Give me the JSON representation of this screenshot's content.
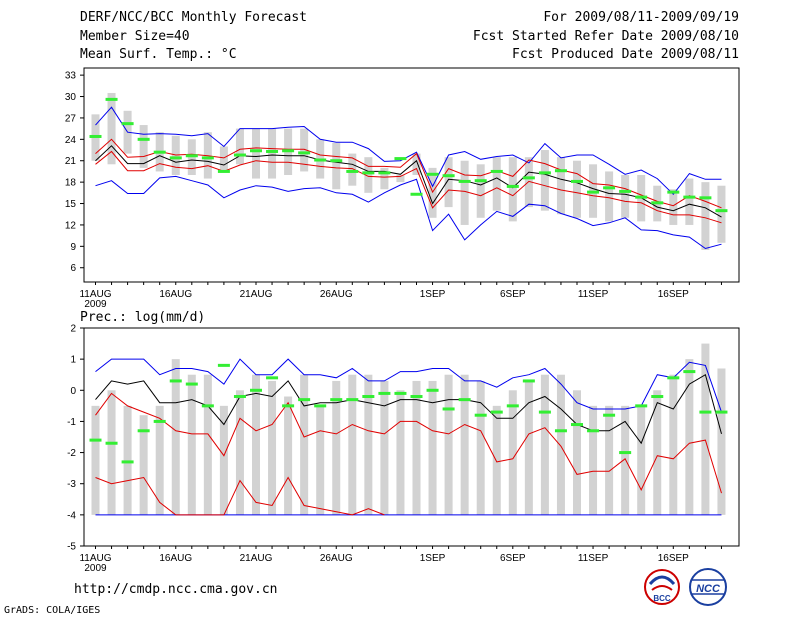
{
  "header": {
    "title": "DERF/NCC/BCC Monthly Forecast",
    "member_size": "Member Size=40",
    "variable": "Mean Surf. Temp.: °C",
    "forecast_period": "For 2009/08/11-2009/09/19",
    "started_refer": "Fcst Started Refer Date 2009/08/10",
    "produced": "Fcst Produced Date 2009/08/11"
  },
  "footer": {
    "url": "http://cmdp.ncc.cma.gov.cn",
    "credit": "GrADS: COLA/IGES",
    "logo_bcc": "BCC",
    "logo_ncc": "NCC"
  },
  "colors": {
    "box": "#d2d2d2",
    "median": "#000000",
    "quartile": "#e00000",
    "extreme": "#0000ee",
    "mean": "#33ee33"
  },
  "chart_data": [
    {
      "type": "box",
      "title": "Mean Surf. Temp.: °C",
      "xlabel": "",
      "ylabel": "",
      "x_ticks": [
        "11AUG\n2009",
        "16AUG",
        "21AUG",
        "26AUG",
        "1SEP",
        "6SEP",
        "11SEP",
        "16SEP"
      ],
      "x_tick_days": [
        0,
        5,
        10,
        15,
        21,
        26,
        31,
        36
      ],
      "ylim": [
        4,
        34
      ],
      "y_ticks": [
        6,
        9,
        12,
        15,
        18,
        21,
        24,
        27,
        30,
        33
      ],
      "x": [
        0,
        1,
        2,
        3,
        4,
        5,
        6,
        7,
        8,
        9,
        10,
        11,
        12,
        13,
        14,
        15,
        16,
        17,
        18,
        19,
        20,
        21,
        22,
        23,
        24,
        25,
        26,
        27,
        28,
        29,
        30,
        31,
        32,
        33,
        34,
        35,
        36,
        37,
        38,
        39
      ],
      "series": [
        {
          "name": "max",
          "values": [
            26.0,
            28.5,
            25.0,
            24.7,
            24.8,
            24.7,
            24.5,
            24.8,
            23.0,
            25.5,
            25.5,
            25.5,
            25.7,
            25.8,
            24.0,
            23.6,
            23.6,
            22.7,
            20.9,
            21.0,
            22.2,
            17.4,
            21.8,
            22.3,
            21.2,
            21.6,
            21.8,
            20.7,
            23.4,
            21.4,
            21.8,
            21.8,
            20.5,
            19.1,
            19.7,
            18.5,
            16.3,
            19.2,
            18.4,
            18.4
          ]
        },
        {
          "name": "q3",
          "values": [
            22.0,
            24.0,
            21.5,
            21.6,
            22.3,
            21.8,
            21.9,
            21.7,
            21.4,
            22.6,
            22.8,
            22.7,
            22.6,
            22.6,
            21.8,
            21.6,
            21.4,
            20.2,
            20.2,
            20.1,
            22.0,
            16.6,
            19.9,
            19.0,
            18.9,
            19.6,
            18.8,
            21.1,
            20.6,
            19.7,
            19.2,
            17.8,
            17.6,
            17.1,
            16.2,
            15.3,
            14.7,
            16.1,
            15.3,
            14.4
          ]
        },
        {
          "name": "median",
          "values": [
            21.0,
            23.1,
            20.6,
            20.6,
            21.7,
            20.8,
            21.1,
            20.9,
            20.4,
            21.7,
            21.6,
            21.8,
            21.7,
            21.7,
            21.1,
            20.8,
            20.5,
            19.5,
            19.5,
            19.1,
            21.0,
            15.0,
            18.4,
            18.2,
            17.6,
            18.6,
            17.2,
            19.4,
            19.1,
            18.4,
            17.9,
            17.1,
            16.4,
            16.3,
            15.8,
            14.5,
            14.0,
            14.9,
            14.4,
            13.1
          ]
        },
        {
          "name": "q1",
          "values": [
            20.5,
            22.3,
            19.6,
            19.6,
            20.6,
            20.1,
            19.9,
            20.3,
            19.5,
            20.4,
            21.0,
            20.8,
            20.8,
            20.5,
            20.2,
            20.0,
            19.9,
            18.8,
            18.7,
            18.8,
            19.9,
            14.4,
            16.9,
            16.7,
            16.1,
            17.2,
            16.1,
            18.1,
            17.5,
            16.9,
            16.5,
            16.1,
            15.8,
            15.3,
            15.1,
            14.0,
            13.4,
            13.4,
            13.0,
            12.3
          ]
        },
        {
          "name": "min",
          "values": [
            17.5,
            18.2,
            16.4,
            16.4,
            18.6,
            18.8,
            18.2,
            17.6,
            15.8,
            16.9,
            17.5,
            17.3,
            16.7,
            17.1,
            17.2,
            16.5,
            16.3,
            15.2,
            16.5,
            17.6,
            18.4,
            11.2,
            13.5,
            9.9,
            12.0,
            13.9,
            13.2,
            14.9,
            14.7,
            13.6,
            12.9,
            11.9,
            12.3,
            13.0,
            11.3,
            11.2,
            10.6,
            10.3,
            8.7,
            9.3
          ]
        },
        {
          "name": "box_top",
          "values": [
            27.5,
            30.5,
            28.0,
            26.0,
            25.0,
            24.5,
            24.0,
            25.0,
            23.0,
            25.5,
            25.5,
            25.5,
            25.5,
            25.5,
            24.0,
            23.5,
            22.0,
            21.5,
            20.0,
            19.0,
            22.0,
            20.0,
            21.5,
            21.0,
            20.5,
            21.5,
            21.5,
            21.5,
            22.5,
            21.5,
            21.0,
            20.5,
            19.5,
            19.0,
            19.0,
            17.5,
            17.0,
            18.5,
            18.0,
            17.5
          ]
        },
        {
          "name": "box_bottom",
          "values": [
            21.0,
            20.5,
            22.0,
            20.0,
            19.5,
            19.0,
            19.0,
            18.5,
            19.5,
            20.5,
            18.5,
            18.5,
            19.0,
            19.5,
            18.5,
            17.0,
            17.5,
            16.5,
            17.0,
            18.0,
            19.0,
            13.0,
            14.5,
            12.0,
            13.0,
            14.0,
            12.5,
            14.5,
            14.0,
            13.5,
            13.0,
            13.0,
            12.5,
            13.0,
            12.5,
            12.5,
            12.0,
            12.0,
            8.5,
            9.5
          ]
        },
        {
          "name": "mean",
          "values": [
            24.4,
            29.6,
            26.2,
            24.0,
            22.2,
            21.4,
            21.7,
            21.4,
            19.5,
            21.8,
            22.4,
            22.3,
            22.4,
            22.1,
            21.1,
            21.0,
            19.5,
            19.3,
            19.3,
            21.3,
            16.3,
            19.1,
            18.9,
            18.1,
            18.2,
            19.5,
            17.4,
            18.6,
            19.3,
            19.6,
            18.1,
            16.6,
            17.2,
            16.7,
            15.9,
            15.1,
            16.6,
            15.9,
            15.8,
            14.0
          ]
        }
      ]
    },
    {
      "type": "box",
      "title": "Prec.: log(mm/d)",
      "xlabel": "",
      "ylabel": "",
      "x_ticks": [
        "11AUG\n2009",
        "16AUG",
        "21AUG",
        "26AUG",
        "1SEP",
        "6SEP",
        "11SEP",
        "16SEP"
      ],
      "x_tick_days": [
        0,
        5,
        10,
        15,
        21,
        26,
        31,
        36
      ],
      "ylim": [
        -5,
        2
      ],
      "y_ticks": [
        -5,
        -4,
        -3,
        -2,
        -1,
        0,
        1,
        2
      ],
      "x": [
        0,
        1,
        2,
        3,
        4,
        5,
        6,
        7,
        8,
        9,
        10,
        11,
        12,
        13,
        14,
        15,
        16,
        17,
        18,
        19,
        20,
        21,
        22,
        23,
        24,
        25,
        26,
        27,
        28,
        29,
        30,
        31,
        32,
        33,
        34,
        35,
        36,
        37,
        38,
        39
      ],
      "series": [
        {
          "name": "max",
          "values": [
            0.6,
            1.0,
            1.0,
            1.0,
            0.5,
            0.7,
            0.7,
            0.6,
            0.2,
            1.0,
            0.5,
            0.5,
            1.0,
            0.5,
            0.5,
            0.4,
            0.7,
            0.3,
            0.3,
            0.6,
            0.6,
            0.7,
            0.7,
            0.3,
            0.3,
            0.1,
            0.4,
            0.5,
            0.7,
            0.2,
            -0.4,
            -0.6,
            -0.6,
            -0.6,
            -0.5,
            0.5,
            0.4,
            0.9,
            0.8,
            -0.7
          ]
        },
        {
          "name": "median",
          "values": [
            -0.3,
            0.3,
            0.2,
            0.3,
            -0.4,
            -0.4,
            -0.3,
            -0.5,
            -1.1,
            -0.2,
            -0.1,
            -0.2,
            0.3,
            -0.5,
            -0.4,
            -0.4,
            -0.3,
            -0.4,
            -0.5,
            -0.3,
            -0.3,
            -0.4,
            -0.3,
            -0.3,
            -0.4,
            -0.9,
            -0.9,
            -0.4,
            -0.2,
            -0.6,
            -1.1,
            -1.3,
            -1.3,
            -1.0,
            -1.7,
            -0.4,
            -0.6,
            0.2,
            0.5,
            -1.4
          ]
        },
        {
          "name": "q1",
          "values": [
            -0.8,
            -0.1,
            -0.5,
            -0.7,
            -0.9,
            -1.3,
            -1.4,
            -1.4,
            -2.1,
            -0.9,
            -1.3,
            -1.1,
            -0.4,
            -1.5,
            -1.3,
            -1.4,
            -1.1,
            -1.3,
            -1.4,
            -1.0,
            -1.0,
            -1.3,
            -1.4,
            -1.1,
            -1.3,
            -2.3,
            -2.2,
            -1.4,
            -1.2,
            -1.8,
            -2.7,
            -2.6,
            -2.6,
            -2.2,
            -3.2,
            -2.1,
            -2.2,
            -1.7,
            -1.6,
            -3.3
          ]
        },
        {
          "name": "min_partial",
          "values": [
            -2.8,
            -3.0,
            -2.9,
            -2.8,
            -3.6,
            -4.0,
            -4.0,
            -4.0,
            -4.0,
            -2.9,
            -3.6,
            -3.7,
            -2.8,
            -3.7,
            -3.8,
            -3.9,
            -4.0,
            -3.8,
            -4.0
          ]
        },
        {
          "name": "box_top",
          "values": [
            -0.5,
            0.0,
            -0.5,
            -0.8,
            -0.5,
            1.0,
            0.5,
            0.5,
            -0.5,
            0.0,
            0.5,
            0.3,
            -0.2,
            0.5,
            -0.5,
            0.3,
            0.5,
            0.5,
            0.3,
            0.0,
            0.3,
            0.3,
            0.5,
            0.5,
            0.3,
            -0.5,
            0.0,
            0.3,
            0.5,
            0.5,
            0.0,
            -0.5,
            -0.5,
            -0.5,
            -0.5,
            0.0,
            0.5,
            1.0,
            1.5,
            0.7
          ]
        },
        {
          "name": "box_bottom",
          "values": [
            -4.0,
            -4.0,
            -4.0,
            -4.0,
            -4.0,
            -4.0,
            -4.0,
            -4.0,
            -4.0,
            -4.0,
            -4.0,
            -4.0,
            -4.0,
            -4.0,
            -4.0,
            -4.0,
            -4.0,
            -4.0,
            -4.0,
            -4.0,
            -4.0,
            -4.0,
            -4.0,
            -4.0,
            -4.0,
            -4.0,
            -4.0,
            -4.0,
            -4.0,
            -4.0,
            -4.0,
            -4.0,
            -4.0,
            -4.0,
            -4.0,
            -4.0,
            -4.0,
            -4.0,
            -4.0,
            -4.0
          ]
        },
        {
          "name": "mean",
          "values": [
            -1.6,
            -1.7,
            -2.3,
            -1.3,
            -1.0,
            0.3,
            0.2,
            -0.5,
            0.8,
            -0.2,
            0.0,
            0.4,
            -0.5,
            -0.3,
            -0.5,
            -0.3,
            -0.3,
            -0.2,
            -0.1,
            -0.1,
            -0.2,
            0.0,
            -0.6,
            -0.3,
            -0.8,
            -0.7,
            -0.5,
            0.3,
            -0.7,
            -1.3,
            -1.1,
            -1.3,
            -0.8,
            -2.0,
            -0.5,
            -0.2,
            0.4,
            0.6,
            -0.7,
            -0.7
          ]
        }
      ]
    }
  ]
}
